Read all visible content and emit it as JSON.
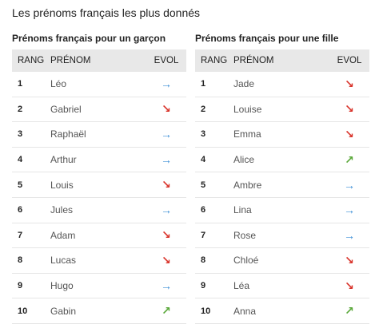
{
  "title": "Les prénoms français les plus donnés",
  "tables": [
    {
      "caption": "Prénoms français pour un garçon",
      "headers": [
        "RANG",
        "PRÉNOM",
        "EVOL"
      ],
      "rows": [
        [
          1,
          "Léo",
          "→"
        ],
        [
          2,
          "Gabriel",
          "↘"
        ],
        [
          3,
          "Raphaël",
          "→"
        ],
        [
          4,
          "Arthur",
          "→"
        ],
        [
          5,
          "Louis",
          "↘"
        ],
        [
          6,
          "Jules",
          "→"
        ],
        [
          7,
          "Adam",
          "↘"
        ],
        [
          8,
          "Lucas",
          "↘"
        ],
        [
          9,
          "Hugo",
          "→"
        ],
        [
          10,
          "Gabin",
          "↗"
        ]
      ]
    },
    {
      "caption": "Prénoms français pour une fille",
      "headers": [
        "RANG",
        "PRÉNOM",
        "EVOL"
      ],
      "rows": [
        [
          1,
          "Jade",
          "↘"
        ],
        [
          2,
          "Louise",
          "↘"
        ],
        [
          3,
          "Emma",
          "↘"
        ],
        [
          4,
          "Alice",
          "↗"
        ],
        [
          5,
          "Ambre",
          "→"
        ],
        [
          6,
          "Lina",
          "→"
        ],
        [
          7,
          "Rose",
          "→"
        ],
        [
          8,
          "Chloé",
          "↘"
        ],
        [
          9,
          "Léa",
          "↘"
        ],
        [
          10,
          "Anna",
          "↗"
        ]
      ]
    }
  ],
  "evol_colors": {
    "→": "#3a8ed6",
    "↘": "#d9342b",
    "↗": "#5aa83a"
  }
}
